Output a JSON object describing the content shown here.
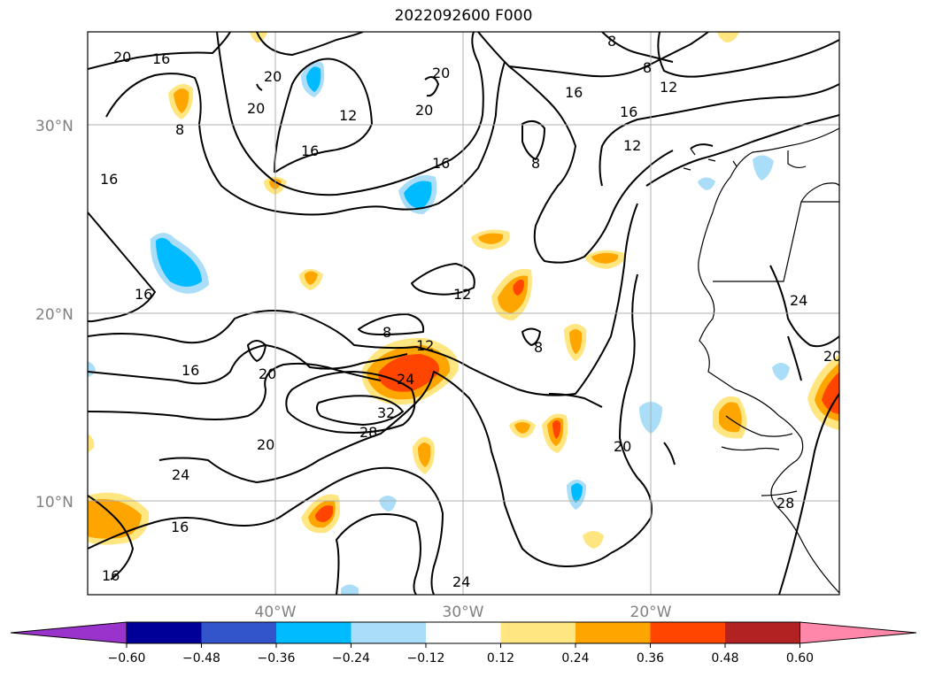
{
  "title": "2022092600 F000",
  "map": {
    "lat_labels": [
      "30°N",
      "20°N",
      "10°N"
    ],
    "lon_labels": [
      "40°W",
      "30°W",
      "20°W"
    ],
    "contour_levels": [
      "8",
      "12",
      "16",
      "20",
      "24",
      "28",
      "32"
    ]
  },
  "colorbar": {
    "ticks": [
      "−0.60",
      "−0.48",
      "−0.36",
      "−0.24",
      "−0.12",
      "0.12",
      "0.24",
      "0.36",
      "0.48",
      "0.60"
    ],
    "colors": [
      "#9933CC",
      "#000099",
      "#3355CC",
      "#00BBFF",
      "#AADDF7",
      "#FFFFFF",
      "#FFE680",
      "#FFA500",
      "#FF4500",
      "#B22222",
      "#FF88AA"
    ]
  }
}
